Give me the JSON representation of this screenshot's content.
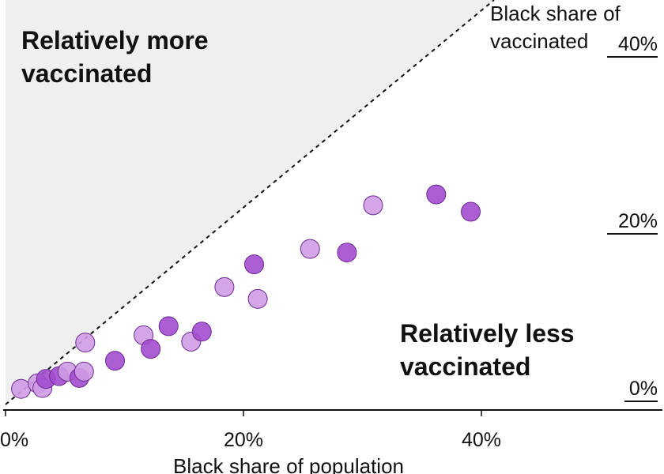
{
  "chart_data": {
    "type": "scatter",
    "xlabel": "Black share of population",
    "ylabel_lines": [
      "Black share of",
      "vaccinated"
    ],
    "xlim": [
      0,
      54
    ],
    "ylim": [
      0,
      45
    ],
    "x_ticks": [
      "0%",
      "20%",
      "40%"
    ],
    "x_tick_values": [
      0,
      20,
      40
    ],
    "y_ticks": [
      "0%",
      "20%",
      "40%"
    ],
    "y_tick_values": [
      0,
      20,
      40
    ],
    "annotations": {
      "above": [
        "Relatively more",
        "vaccinated"
      ],
      "below": [
        "Relatively less",
        "vaccinated"
      ]
    },
    "reference_line": "parity (y = x)",
    "colors": {
      "dark_point": "#a24ccf",
      "light_point": "#cf9be4",
      "point_stroke": "#6d2c92",
      "shade": "#efefef"
    },
    "points": [
      {
        "x": 1.3,
        "y": 1.2,
        "shade": "light"
      },
      {
        "x": 2.7,
        "y": 1.8,
        "shade": "light"
      },
      {
        "x": 3.1,
        "y": 1.3,
        "shade": "light"
      },
      {
        "x": 3.4,
        "y": 2.3,
        "shade": "dark"
      },
      {
        "x": 4.5,
        "y": 2.6,
        "shade": "dark"
      },
      {
        "x": 5.2,
        "y": 3.1,
        "shade": "light"
      },
      {
        "x": 6.2,
        "y": 2.4,
        "shade": "dark"
      },
      {
        "x": 6.6,
        "y": 3.1,
        "shade": "light"
      },
      {
        "x": 6.7,
        "y": 6.3,
        "shade": "light"
      },
      {
        "x": 9.2,
        "y": 4.3,
        "shade": "dark"
      },
      {
        "x": 11.6,
        "y": 7.1,
        "shade": "light"
      },
      {
        "x": 12.2,
        "y": 5.6,
        "shade": "dark"
      },
      {
        "x": 13.7,
        "y": 8.1,
        "shade": "dark"
      },
      {
        "x": 15.6,
        "y": 6.4,
        "shade": "light"
      },
      {
        "x": 16.5,
        "y": 7.5,
        "shade": "dark"
      },
      {
        "x": 18.4,
        "y": 12.4,
        "shade": "light"
      },
      {
        "x": 20.9,
        "y": 14.9,
        "shade": "dark"
      },
      {
        "x": 21.2,
        "y": 11.1,
        "shade": "light"
      },
      {
        "x": 25.6,
        "y": 16.6,
        "shade": "light"
      },
      {
        "x": 28.7,
        "y": 16.2,
        "shade": "dark"
      },
      {
        "x": 30.9,
        "y": 21.4,
        "shade": "light"
      },
      {
        "x": 36.2,
        "y": 22.6,
        "shade": "dark"
      },
      {
        "x": 39.1,
        "y": 20.7,
        "shade": "dark"
      }
    ]
  }
}
